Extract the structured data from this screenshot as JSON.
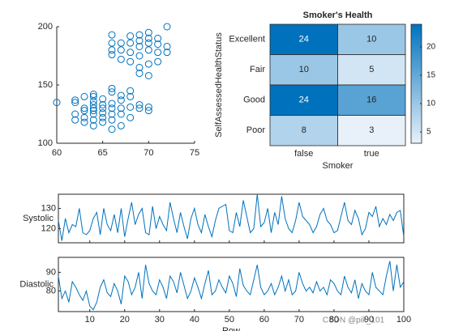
{
  "chart_data": [
    {
      "type": "scatter",
      "color": "#0072bd",
      "x": [
        60,
        62,
        62,
        62,
        62,
        63,
        63,
        63,
        63,
        63,
        64,
        64,
        64,
        64,
        64,
        64,
        64,
        64,
        64,
        65,
        65,
        65,
        65,
        65,
        65,
        66,
        66,
        66,
        66,
        66,
        66,
        66,
        67,
        67,
        67,
        67,
        68,
        68,
        68,
        69,
        69,
        70,
        70,
        68,
        67,
        66,
        66,
        66,
        66,
        67,
        67,
        67,
        68,
        68,
        68,
        68,
        69,
        69,
        69,
        69,
        69,
        70,
        70,
        70,
        70,
        70,
        70,
        71,
        71,
        71,
        71,
        72,
        72,
        72,
        69
      ],
      "values": [
        135,
        125,
        135,
        137,
        120,
        130,
        128,
        122,
        140,
        118,
        115,
        120,
        125,
        128,
        130,
        133,
        136,
        140,
        142,
        118,
        122,
        126,
        130,
        133,
        138,
        112,
        120,
        125,
        130,
        134,
        144,
        147,
        115,
        125,
        130,
        137,
        122,
        140,
        145,
        130,
        133,
        128,
        131,
        131,
        141,
        180,
        186,
        193,
        176,
        172,
        180,
        186,
        170,
        178,
        186,
        192,
        165,
        175,
        183,
        188,
        193,
        158,
        168,
        180,
        186,
        190,
        195,
        170,
        178,
        185,
        190,
        178,
        200,
        183,
        160
      ],
      "xlim": [
        60,
        75
      ],
      "xticks": [
        60,
        65,
        70,
        75
      ],
      "ylim": [
        100,
        200
      ],
      "yticks": [
        100,
        150,
        200
      ]
    },
    {
      "type": "heatmap",
      "title": "Smoker's Health",
      "xlabel": "Smoker",
      "ylabel": "SelfAssessedHealthStatus",
      "categories": [
        "false",
        "true"
      ],
      "rows": [
        "Excellent",
        "Fair",
        "Good",
        "Poor"
      ],
      "values": [
        [
          24,
          10
        ],
        [
          10,
          5
        ],
        [
          24,
          16
        ],
        [
          8,
          3
        ]
      ],
      "clim": [
        3,
        24
      ],
      "cticks": [
        5,
        10,
        15,
        20
      ],
      "colors": [
        "#e8f1fa",
        "#0072bd"
      ]
    },
    {
      "type": "stackedplot",
      "xlabel": "Row",
      "color": "#0072bd",
      "x": [
        1,
        2,
        3,
        4,
        5,
        6,
        7,
        8,
        9,
        10,
        11,
        12,
        13,
        14,
        15,
        16,
        17,
        18,
        19,
        20,
        21,
        22,
        23,
        24,
        25,
        26,
        27,
        28,
        29,
        30,
        31,
        32,
        33,
        34,
        35,
        36,
        37,
        38,
        39,
        40,
        41,
        42,
        43,
        44,
        45,
        46,
        47,
        48,
        49,
        50,
        51,
        52,
        53,
        54,
        55,
        56,
        57,
        58,
        59,
        60,
        61,
        62,
        63,
        64,
        65,
        66,
        67,
        68,
        69,
        70,
        71,
        72,
        73,
        74,
        75,
        76,
        77,
        78,
        79,
        80,
        81,
        82,
        83,
        84,
        85,
        86,
        87,
        88,
        89,
        90,
        91,
        92,
        93,
        94,
        95,
        96,
        97,
        98,
        99,
        100
      ],
      "xlim": [
        1,
        100
      ],
      "xticks": [
        10,
        20,
        30,
        40,
        50,
        60,
        70,
        80,
        90,
        100
      ],
      "series": [
        {
          "name": "Systolic",
          "ylim": [
            113,
            137
          ],
          "yticks": [
            120,
            130
          ],
          "values": [
            124,
            114,
            125,
            118,
            122,
            121,
            130,
            118,
            117,
            119,
            125,
            128,
            117,
            130,
            122,
            119,
            127,
            118,
            130,
            116,
            125,
            133,
            122,
            127,
            130,
            118,
            117,
            131,
            120,
            126,
            122,
            119,
            133,
            125,
            118,
            128,
            121,
            115,
            125,
            130,
            122,
            118,
            127,
            121,
            116,
            124,
            130,
            131,
            132,
            119,
            118,
            128,
            121,
            134,
            126,
            118,
            120,
            137,
            121,
            123,
            130,
            118,
            128,
            122,
            136,
            125,
            120,
            118,
            124,
            133,
            126,
            124,
            122,
            118,
            121,
            127,
            130,
            124,
            122,
            118,
            119,
            126,
            133,
            124,
            122,
            129,
            125,
            117,
            120,
            128,
            126,
            131,
            121,
            125,
            122,
            127,
            124,
            128,
            129,
            116
          ]
        },
        {
          "name": "Diastolic",
          "ylim": [
            69,
            98
          ],
          "yticks": [
            80,
            90
          ],
          "values": [
            88,
            76,
            80,
            74,
            85,
            82,
            78,
            75,
            80,
            72,
            70,
            74,
            82,
            86,
            79,
            77,
            84,
            80,
            73,
            88,
            85,
            78,
            82,
            90,
            76,
            94,
            84,
            80,
            78,
            86,
            82,
            76,
            88,
            85,
            79,
            90,
            83,
            76,
            80,
            87,
            82,
            76,
            84,
            91,
            78,
            80,
            86,
            82,
            79,
            88,
            84,
            77,
            92,
            83,
            80,
            78,
            86,
            94,
            82,
            78,
            80,
            84,
            78,
            82,
            88,
            80,
            86,
            78,
            80,
            90,
            84,
            80,
            82,
            79,
            85,
            80,
            82,
            78,
            86,
            84,
            80,
            78,
            88,
            82,
            79,
            86,
            76,
            84,
            80,
            78,
            90,
            82,
            80,
            78,
            88,
            96,
            80,
            94,
            82,
            85
          ]
        }
      ]
    }
  ]
}
